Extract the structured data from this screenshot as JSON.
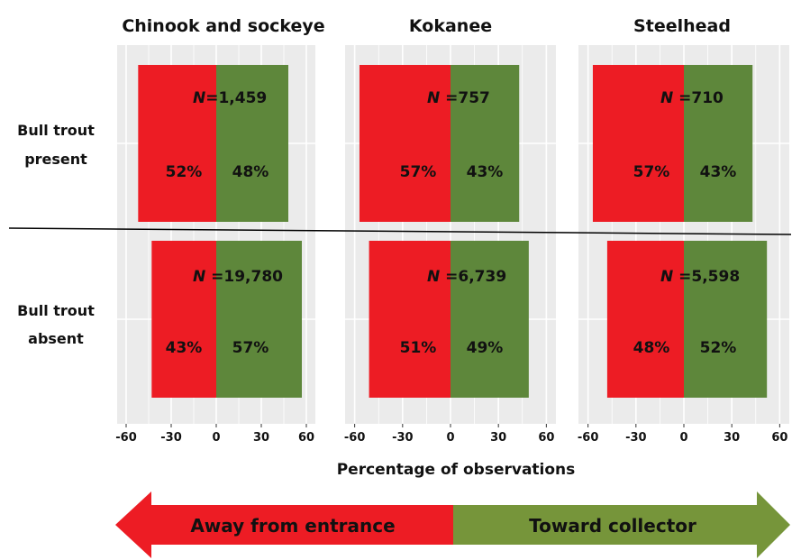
{
  "chart_data": {
    "type": "bar",
    "subtype": "diverging-horizontal-bar-facets",
    "xlabel": "Percentage of observations",
    "xlim": [
      -66,
      66
    ],
    "xticks": [
      -60,
      -30,
      0,
      30,
      60
    ],
    "tick_labels": [
      "-60",
      "-30",
      "0",
      "30",
      "60"
    ],
    "grid": true,
    "columns": [
      "Chinook and sockeye",
      "Kokanee",
      "Steelhead"
    ],
    "rows": [
      "Bull trout present",
      "Bull trout absent"
    ],
    "row_label_lines": [
      [
        "Bull trout",
        "present"
      ],
      [
        "Bull trout",
        "absent"
      ]
    ],
    "series": [
      {
        "name": "Away from entrance",
        "color": "#ed1c24"
      },
      {
        "name": "Toward collector",
        "color": "#5e873b"
      }
    ],
    "cells": [
      [
        {
          "away": 52,
          "toward": 48,
          "away_label": "52%",
          "toward_label": "48%",
          "n_label": "N",
          "n_value": "=1,459"
        },
        {
          "away": 57,
          "toward": 43,
          "away_label": "57%",
          "toward_label": "43%",
          "n_label": "N",
          "n_value": " =757"
        },
        {
          "away": 57,
          "toward": 43,
          "away_label": "57%",
          "toward_label": "43%",
          "n_label": "N",
          "n_value": " =710"
        }
      ],
      [
        {
          "away": 43,
          "toward": 57,
          "away_label": "43%",
          "toward_label": "57%",
          "n_label": "N",
          "n_value": " =19,780"
        },
        {
          "away": 51,
          "toward": 49,
          "away_label": "51%",
          "toward_label": "49%",
          "n_label": "N",
          "n_value": " =6,739"
        },
        {
          "away": 48,
          "toward": 52,
          "away_label": "48%",
          "toward_label": "52%",
          "n_label": "N",
          "n_value": " =5,598"
        }
      ]
    ],
    "arrow": {
      "left_label": "Away from entrance",
      "right_label": "Toward collector",
      "left_color": "#ed1c24",
      "right_color": "#76953a"
    }
  }
}
